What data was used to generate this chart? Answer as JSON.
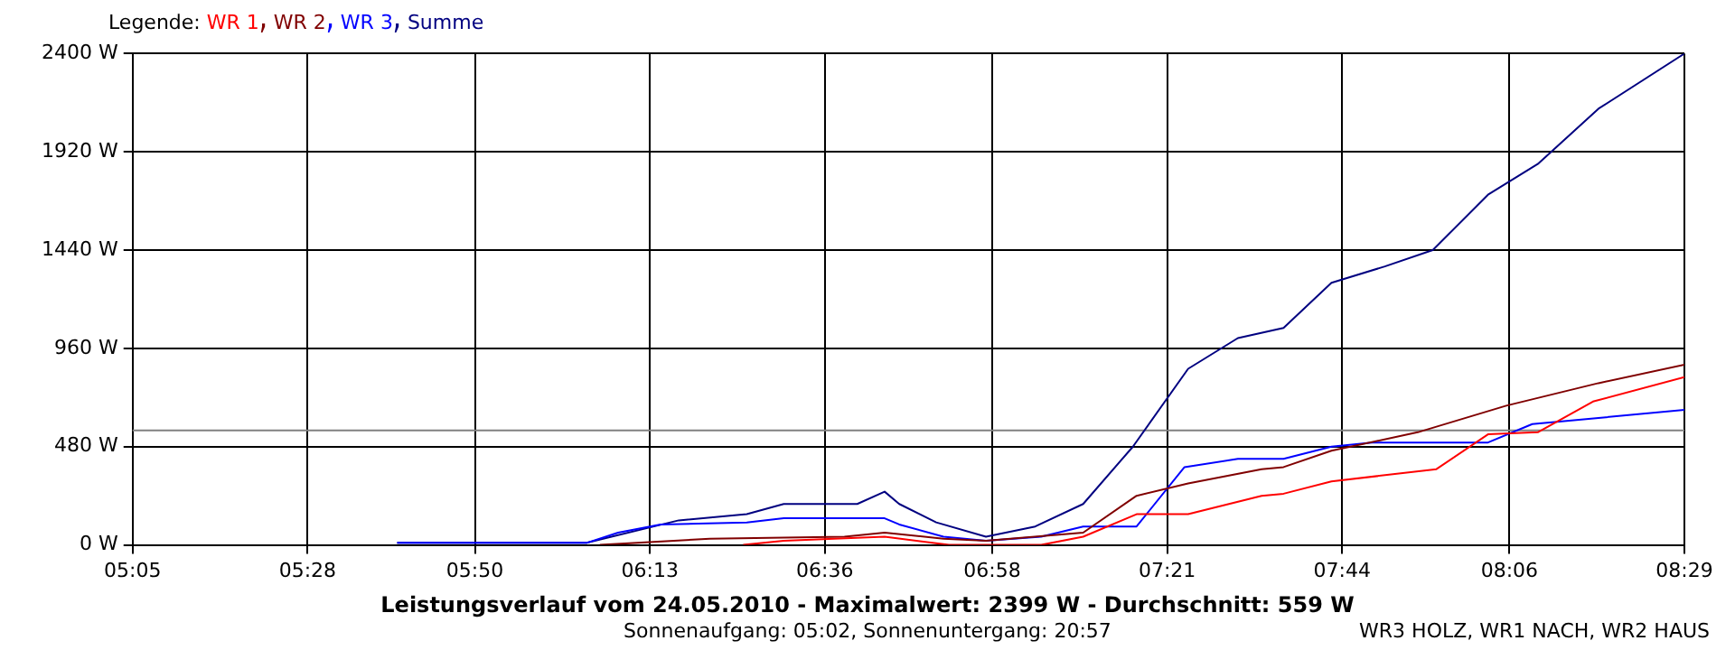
{
  "chart_data": {
    "type": "line",
    "title": "Leistungsverlauf vom 24.05.2010 - Maximalwert: 2399 W - Durchschnitt: 559 W",
    "subtitle": "Sonnenaufgang: 05:02, Sonnenuntergang: 20:57",
    "annotations": [
      "WR3 HOLZ, WR1 NACH, WR2 HAUS"
    ],
    "legend_title": "Legende:",
    "legend": "top left",
    "grid": true,
    "marker": "none",
    "line_style": "solid",
    "xlim": [
      5.0833,
      8.4833
    ],
    "xticks": [
      {
        "value": 5.0833,
        "label": "05:05"
      },
      {
        "value": 5.4667,
        "label": "05:28"
      },
      {
        "value": 5.8333,
        "label": "05:50"
      },
      {
        "value": 6.2167,
        "label": "06:13"
      },
      {
        "value": 6.6,
        "label": "06:36"
      },
      {
        "value": 6.9667,
        "label": "06:58"
      },
      {
        "value": 7.35,
        "label": "07:21"
      },
      {
        "value": 7.7333,
        "label": "07:44"
      },
      {
        "value": 8.1,
        "label": "08:06"
      },
      {
        "value": 8.4833,
        "label": "08:29"
      }
    ],
    "ylim": [
      0,
      2400
    ],
    "yticks": [
      {
        "value": 0,
        "label": "0 W"
      },
      {
        "value": 480,
        "label": "480 W"
      },
      {
        "value": 960,
        "label": "960 W"
      },
      {
        "value": 1440,
        "label": "1440 W"
      },
      {
        "value": 1920,
        "label": "1920 W"
      },
      {
        "value": 2400,
        "label": "2400 W"
      }
    ],
    "ref_lines": [
      {
        "axis": "y",
        "value": 559,
        "color": "#808080"
      }
    ],
    "series": [
      {
        "name": "WR 1",
        "color": "#ff0000",
        "x": [
          6.421,
          6.51,
          6.731,
          6.872,
          7.074,
          7.166,
          7.283,
          7.396,
          7.557,
          7.605,
          7.71,
          7.94,
          8.053,
          8.162,
          8.283,
          8.4833
        ],
        "values": [
          0,
          20,
          40,
          0,
          0,
          40,
          150,
          150,
          240,
          250,
          310,
          370,
          540,
          550,
          700,
          820
        ]
      },
      {
        "name": "WR 2",
        "color": "#800000",
        "x": [
          6.107,
          6.348,
          6.643,
          6.731,
          6.86,
          6.953,
          7.166,
          7.283,
          7.396,
          7.557,
          7.605,
          7.71,
          7.899,
          8.093,
          8.295,
          8.4833
        ],
        "values": [
          0,
          30,
          40,
          60,
          30,
          20,
          60,
          240,
          300,
          370,
          380,
          460,
          550,
          680,
          790,
          880
        ]
      },
      {
        "name": "WR 3",
        "color": "#0000ff",
        "x": [
          5.663,
          6.078,
          6.147,
          6.24,
          6.429,
          6.51,
          6.731,
          6.763,
          6.86,
          6.953,
          7.074,
          7.166,
          7.283,
          7.388,
          7.505,
          7.605,
          7.71,
          7.799,
          8.053,
          8.15,
          8.295,
          8.4833
        ],
        "values": [
          10,
          10,
          60,
          100,
          110,
          130,
          130,
          100,
          40,
          20,
          40,
          90,
          90,
          380,
          420,
          420,
          480,
          500,
          500,
          590,
          620,
          660
        ]
      },
      {
        "name": "Summe",
        "color": "#000080",
        "x": [
          5.663,
          6.078,
          6.28,
          6.429,
          6.51,
          6.671,
          6.731,
          6.763,
          6.844,
          6.953,
          7.061,
          7.166,
          7.275,
          7.396,
          7.505,
          7.605,
          7.71,
          7.827,
          7.932,
          7.968,
          8.053,
          8.162,
          8.295,
          8.4833
        ],
        "values": [
          10,
          10,
          120,
          150,
          200,
          200,
          260,
          200,
          110,
          40,
          90,
          200,
          480,
          860,
          1010,
          1060,
          1280,
          1360,
          1440,
          1520,
          1710,
          1860,
          2130,
          2399
        ]
      }
    ]
  }
}
